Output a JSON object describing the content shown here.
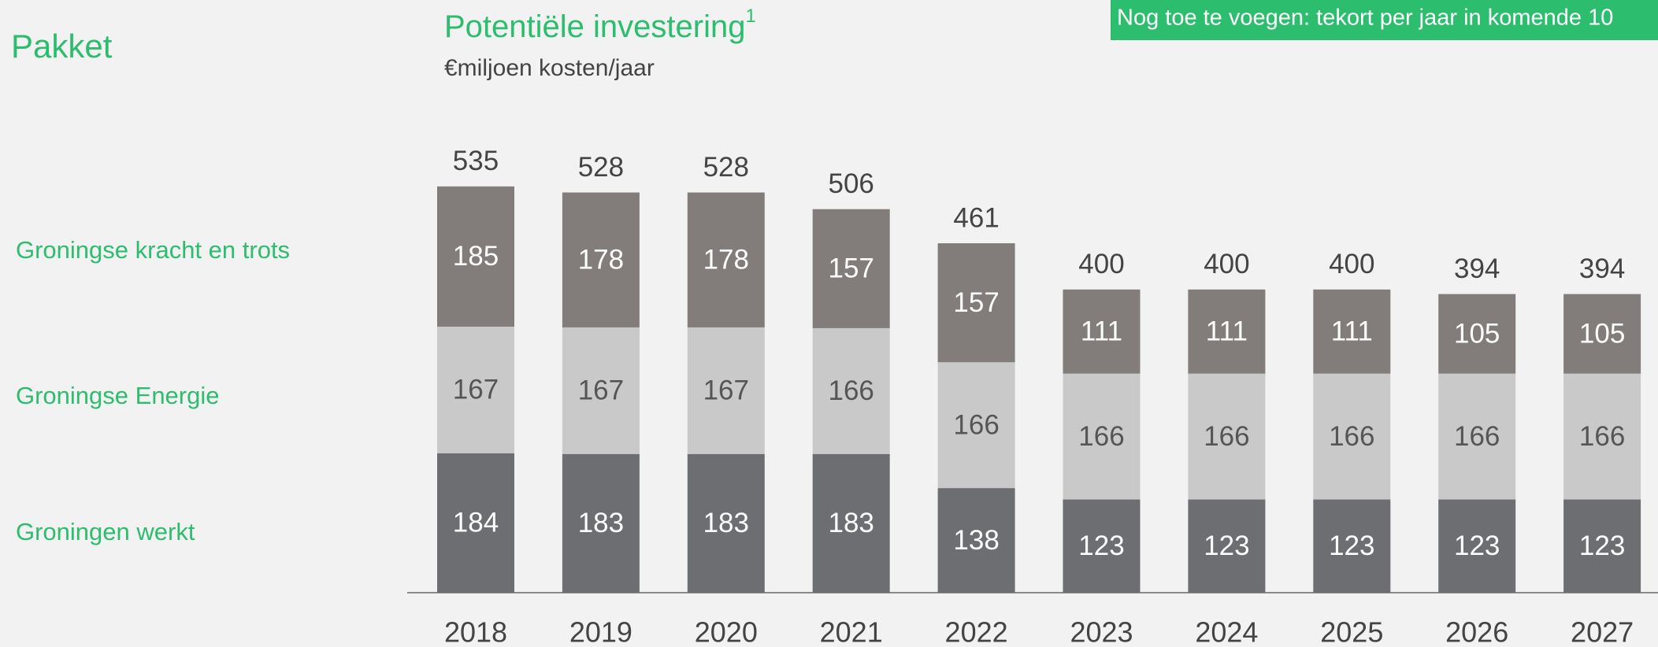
{
  "page": {
    "section": "Pakket",
    "banner": "Nog toe te voegen: tekort per jaar in komende 10"
  },
  "chart_data": {
    "type": "stacked_bar",
    "title": "Potentiële investering",
    "title_note": "1",
    "subtitle": "€miljoen kosten/jaar",
    "categories": [
      "2018",
      "2019",
      "2020",
      "2021",
      "2022",
      "2023",
      "2024",
      "2025",
      "2026",
      "2027"
    ],
    "series": [
      {
        "name": "Groningen werkt",
        "color": "#6d6e71",
        "label_color": "#ffffff",
        "values": [
          184,
          183,
          183,
          183,
          138,
          123,
          123,
          123,
          123,
          123
        ]
      },
      {
        "name": "Groningse Energie",
        "color": "#c9c9c9",
        "label_color": "#555555",
        "values": [
          167,
          167,
          167,
          166,
          166,
          166,
          166,
          166,
          166,
          166
        ]
      },
      {
        "name": "Groningse kracht en trots",
        "color": "#827d7b",
        "label_color": "#ffffff",
        "values": [
          185,
          178,
          178,
          157,
          157,
          111,
          111,
          111,
          105,
          105
        ]
      }
    ],
    "totals": [
      535,
      528,
      528,
      506,
      461,
      400,
      400,
      400,
      394,
      394
    ]
  }
}
